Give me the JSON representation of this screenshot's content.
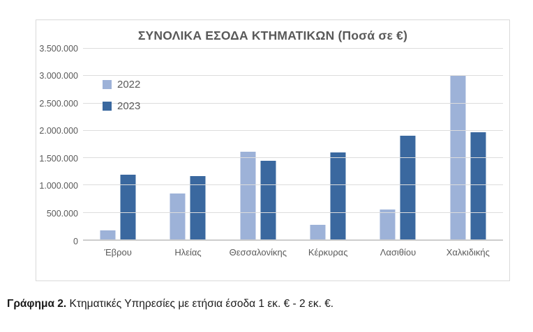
{
  "chart_data": {
    "type": "bar",
    "title": "ΣΥΝΟΛΙΚΑ ΕΣΟΔΑ ΚΤΗΜΑΤΙΚΩΝ (Ποσά σε €)",
    "categories": [
      "Έβρου",
      "Ηλείας",
      "Θεσσαλονίκης",
      "Κέρκυρας",
      "Λασιθίου",
      "Χαλκιδικής"
    ],
    "series": [
      {
        "name": "2022",
        "color": "#9db2d8",
        "values": [
          165000,
          830000,
          1590000,
          260000,
          540000,
          2980000
        ]
      },
      {
        "name": "2023",
        "color": "#3a689f",
        "values": [
          1170000,
          1150000,
          1430000,
          1580000,
          1880000,
          1940000
        ]
      }
    ],
    "ylim": [
      0,
      3500000
    ],
    "ytick_step": 500000,
    "ytick_labels": [
      "0",
      "500.000",
      "1.000.000",
      "1.500.000",
      "2.000.000",
      "2.500.000",
      "3.000.000",
      "3.500.000"
    ],
    "grid": true,
    "legend_position": "top-left-vertical"
  },
  "caption": {
    "label": "Γράφημα 2.",
    "text": " Κτηματικές Υπηρεσίες με ετήσια έσοδα 1 εκ. € - 2 εκ. €."
  },
  "colors": {
    "series_2022": "#9db2d8",
    "series_2023": "#3a689f",
    "gridline": "#dcdcdc",
    "card_border": "#d9d9d9",
    "text": "#595959",
    "caption_text": "#1a1a1a",
    "background": "#ffffff"
  }
}
